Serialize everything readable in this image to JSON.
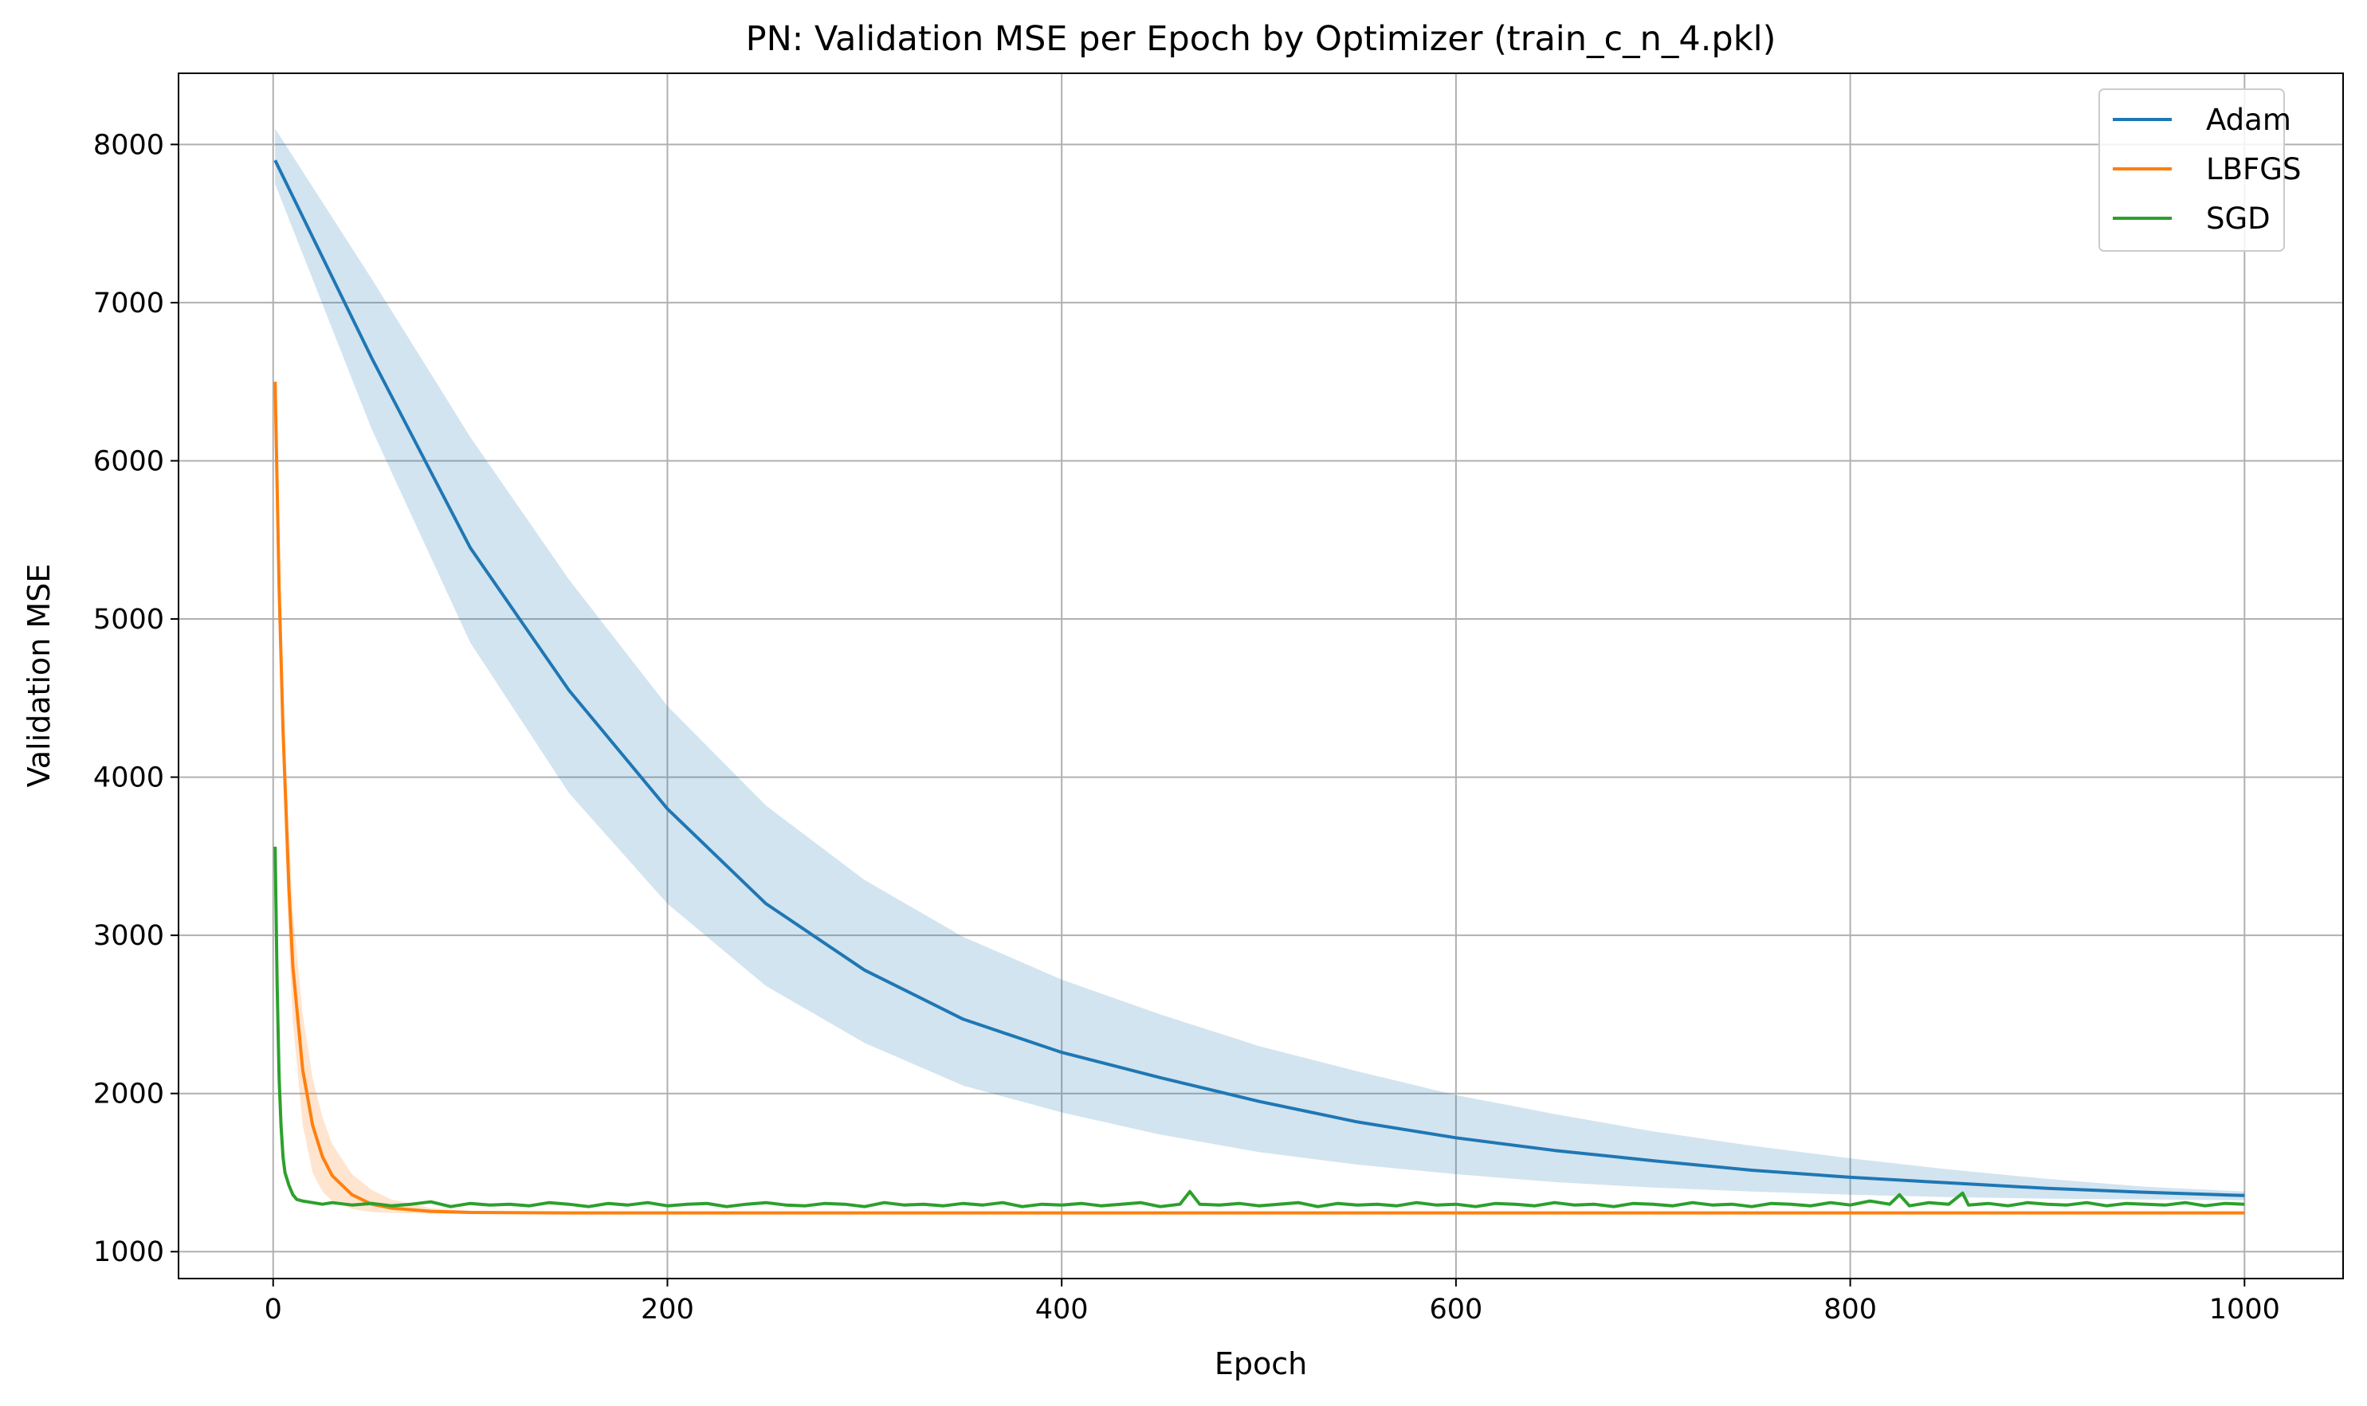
{
  "chart_data": {
    "type": "line",
    "title": "PN: Validation MSE per Epoch by Optimizer (train_c_n_4.pkl)",
    "xlabel": "Epoch",
    "ylabel": "Validation MSE",
    "xlim": [
      -48,
      1050
    ],
    "ylim": [
      830,
      8450
    ],
    "x_ticks": [
      0,
      200,
      400,
      600,
      800,
      1000
    ],
    "y_ticks": [
      1000,
      2000,
      3000,
      4000,
      5000,
      6000,
      7000,
      8000
    ],
    "grid": true,
    "legend_position": "top-right",
    "series": [
      {
        "name": "Adam",
        "color": "#1f77b4",
        "x": [
          1,
          50,
          100,
          150,
          200,
          250,
          300,
          350,
          400,
          450,
          500,
          550,
          600,
          650,
          700,
          750,
          800,
          850,
          900,
          950,
          1000
        ],
        "values": [
          7900,
          6650,
          5450,
          4550,
          3800,
          3200,
          2780,
          2470,
          2260,
          2100,
          1950,
          1820,
          1720,
          1640,
          1575,
          1515,
          1470,
          1435,
          1400,
          1375,
          1355
        ],
        "band_upper": [
          8100,
          7150,
          6150,
          5250,
          4450,
          3820,
          3350,
          2990,
          2720,
          2500,
          2300,
          2140,
          1990,
          1870,
          1760,
          1670,
          1590,
          1520,
          1460,
          1410,
          1380
        ],
        "band_lower": [
          7750,
          6200,
          4850,
          3900,
          3200,
          2680,
          2320,
          2050,
          1880,
          1740,
          1630,
          1550,
          1490,
          1440,
          1405,
          1380,
          1360,
          1345,
          1335,
          1330,
          1325
        ]
      },
      {
        "name": "LBFGS",
        "color": "#ff7f0e",
        "x": [
          1,
          3,
          5,
          8,
          10,
          15,
          20,
          25,
          30,
          40,
          50,
          60,
          80,
          100,
          150,
          200,
          300,
          400,
          500,
          600,
          700,
          800,
          900,
          1000
        ],
        "values": [
          6500,
          5200,
          4300,
          3300,
          2800,
          2150,
          1800,
          1600,
          1480,
          1360,
          1300,
          1275,
          1255,
          1248,
          1245,
          1245,
          1245,
          1245,
          1245,
          1245,
          1245,
          1245,
          1245,
          1245
        ],
        "band_upper": [
          6550,
          5400,
          4550,
          3650,
          3150,
          2500,
          2100,
          1850,
          1680,
          1490,
          1390,
          1330,
          1275,
          1258,
          1250,
          1250,
          1250,
          1250,
          1250,
          1250,
          1250,
          1250,
          1250,
          1250
        ],
        "band_lower": [
          6450,
          5000,
          4050,
          2950,
          2450,
          1800,
          1500,
          1380,
          1320,
          1270,
          1250,
          1245,
          1240,
          1238,
          1238,
          1238,
          1238,
          1238,
          1238,
          1238,
          1238,
          1238,
          1238,
          1238
        ]
      },
      {
        "name": "SGD",
        "color": "#2ca02c",
        "x": [
          1,
          2,
          3,
          4,
          5,
          6,
          8,
          10,
          12,
          15,
          20,
          25,
          30,
          40,
          50,
          60,
          70,
          80,
          90,
          100,
          110,
          120,
          130,
          140,
          150,
          160,
          170,
          180,
          190,
          200,
          210,
          220,
          230,
          240,
          250,
          260,
          270,
          280,
          290,
          300,
          310,
          320,
          330,
          340,
          350,
          360,
          370,
          380,
          390,
          400,
          410,
          420,
          430,
          440,
          450,
          460,
          465,
          470,
          480,
          490,
          500,
          510,
          520,
          530,
          540,
          550,
          560,
          570,
          580,
          590,
          600,
          610,
          620,
          630,
          640,
          650,
          660,
          670,
          680,
          690,
          700,
          710,
          720,
          730,
          740,
          750,
          760,
          770,
          780,
          790,
          800,
          810,
          820,
          825,
          830,
          840,
          850,
          857,
          860,
          870,
          880,
          890,
          900,
          910,
          920,
          930,
          940,
          950,
          960,
          970,
          980,
          990,
          1000
        ],
        "values": [
          3560,
          2700,
          2100,
          1800,
          1600,
          1500,
          1420,
          1360,
          1330,
          1320,
          1310,
          1300,
          1310,
          1295,
          1305,
          1290,
          1300,
          1315,
          1285,
          1305,
          1295,
          1300,
          1290,
          1310,
          1300,
          1285,
          1305,
          1295,
          1310,
          1290,
          1300,
          1305,
          1285,
          1300,
          1310,
          1295,
          1290,
          1305,
          1300,
          1285,
          1310,
          1295,
          1300,
          1290,
          1305,
          1295,
          1310,
          1285,
          1300,
          1295,
          1305,
          1290,
          1300,
          1310,
          1285,
          1300,
          1380,
          1300,
          1295,
          1305,
          1290,
          1300,
          1310,
          1285,
          1305,
          1295,
          1300,
          1290,
          1310,
          1295,
          1300,
          1285,
          1305,
          1300,
          1290,
          1310,
          1295,
          1300,
          1285,
          1305,
          1300,
          1290,
          1310,
          1295,
          1300,
          1285,
          1305,
          1300,
          1290,
          1310,
          1295,
          1320,
          1300,
          1360,
          1290,
          1310,
          1300,
          1370,
          1295,
          1305,
          1290,
          1310,
          1300,
          1295,
          1310,
          1290,
          1305,
          1300,
          1295,
          1310,
          1290,
          1305,
          1300
        ]
      }
    ]
  }
}
